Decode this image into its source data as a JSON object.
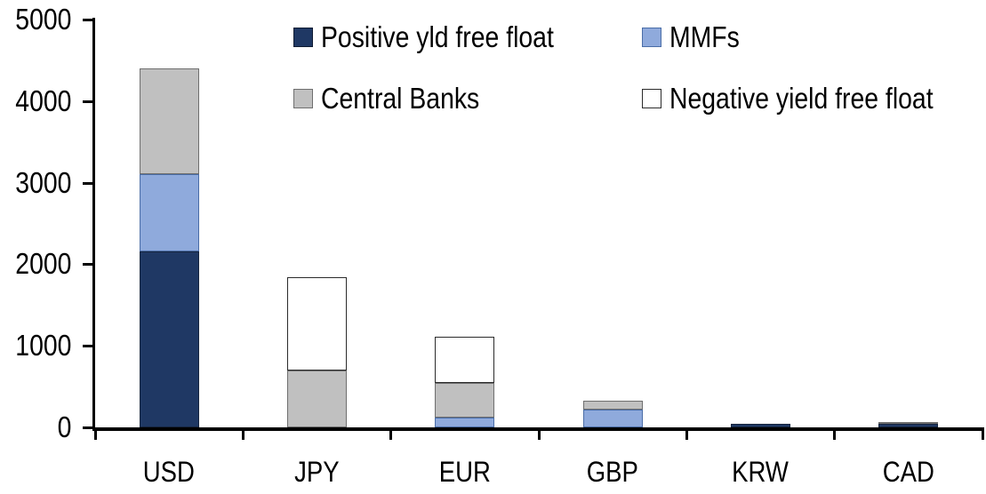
{
  "chart_data": {
    "type": "bar",
    "stacked": true,
    "title": "",
    "xlabel": "",
    "ylabel": "",
    "categories": [
      "USD",
      "JPY",
      "EUR",
      "GBP",
      "KRW",
      "CAD"
    ],
    "series": [
      {
        "name": "Positive yld free float",
        "color": "#1f3864",
        "border_color": "#17263f",
        "values": [
          2160,
          0,
          0,
          0,
          45,
          45
        ]
      },
      {
        "name": "MMFs",
        "color": "#8faadc",
        "border_color": "#4a6da7",
        "values": [
          950,
          0,
          120,
          220,
          0,
          0
        ]
      },
      {
        "name": "Central Banks",
        "color": "#c0c0c0",
        "border_color": "#6f6f6f",
        "values": [
          1290,
          700,
          420,
          110,
          0,
          25
        ]
      },
      {
        "name": "Negative yield free float",
        "color": "#ffffff",
        "border_color": "#2b2b2b",
        "values": [
          0,
          1140,
          570,
          0,
          0,
          0
        ]
      }
    ],
    "ylim": [
      0,
      5000
    ],
    "ytick_interval": 1000,
    "yticks": [
      "0",
      "1000",
      "2000",
      "3000",
      "4000",
      "5000"
    ],
    "grid": false,
    "legend_position": "top",
    "axis_color": "#000000"
  }
}
